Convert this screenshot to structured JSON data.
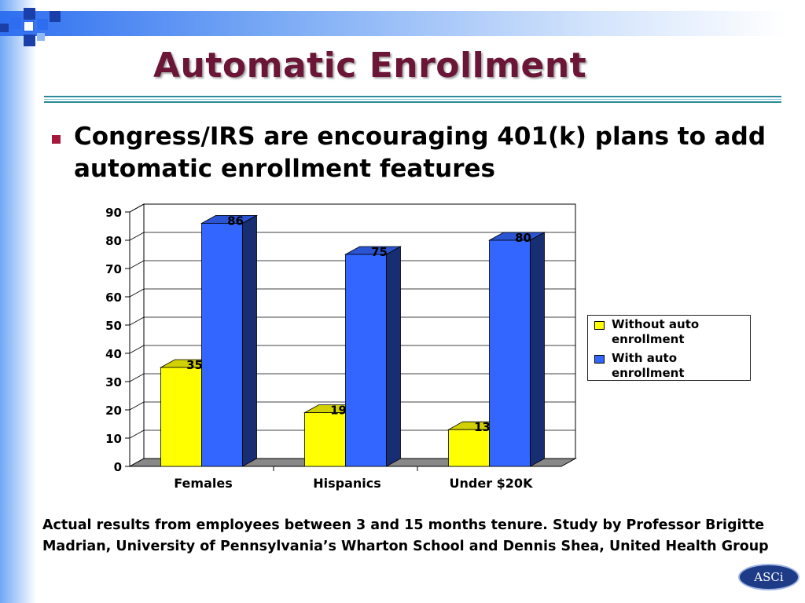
{
  "slide": {
    "title": "Automatic Enrollment",
    "bullet": "Congress/IRS are encouraging 401(k) plans to add automatic enrollment  features",
    "footnote": "Actual results from employees between 3 and 15 months tenure. Study by Professor Brigitte Madrian, University of Pennsylvania’s Wharton School and Dennis Shea, United Health Group",
    "logo_text": "ASCi"
  },
  "colors": {
    "title": "#6b1636",
    "bullet_marker": "#a6173c",
    "series_without": "#ffff00",
    "series_with": "#3366ff",
    "floor": "#888888"
  },
  "chart_data": {
    "type": "bar",
    "categories": [
      "Females",
      "Hispanics",
      "Under $20K"
    ],
    "series": [
      {
        "name": "Without auto enrollment",
        "values": [
          35,
          19,
          13
        ]
      },
      {
        "name": "With auto enrollment",
        "values": [
          86,
          75,
          80
        ]
      }
    ],
    "ylim": [
      0,
      90
    ],
    "yticks": [
      0,
      10,
      20,
      30,
      40,
      50,
      60,
      70,
      80,
      90
    ],
    "grid": true,
    "legend_position": "right",
    "data_labels": true
  }
}
